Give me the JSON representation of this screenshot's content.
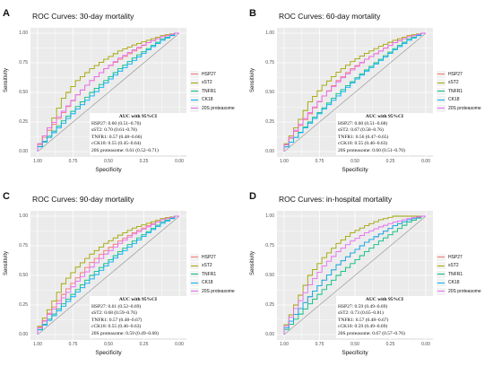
{
  "panels": [
    {
      "letter": "A",
      "title": "ROC Curves: 30-day mortality",
      "auc_header": "AUC with 95%CI",
      "auc_lines": [
        "HSP27: 0.60 (0.51–0.70)",
        "sST2: 0.70 (0.61–0.78)",
        "TNFR1: 0.57 (0.48–0.66)",
        "cCK18: 0.55 (0.45–0.64)",
        "20S proteasome: 0.61 (0.52–0.71)"
      ]
    },
    {
      "letter": "B",
      "title": "ROC Curves: 60-day mortality",
      "auc_header": "AUC with 95%CI",
      "auc_lines": [
        "HSP27: 0.60 (0.51–0.68)",
        "sST2: 0.67 (0.58–0.76)",
        "TNFR1: 0.56 (0.47–0.65)",
        "cCK18: 0.55 (0.46–0.63)",
        "20S proteasome: 0.60 (0.51–0.70)"
      ]
    },
    {
      "letter": "C",
      "title": "ROC Curves: 90-day mortality",
      "auc_header": "AUC with 95%CI",
      "auc_lines": [
        "HSP27: 0.61 (0.52–0.69)",
        "sST2: 0.68 (0.59–0.76)",
        "TNFR1: 0.57 (0.48–0.67)",
        "cCK18: 0.55 (0.46–0.63)",
        "20S proteasome: 0.59 (0.49–0.68)"
      ]
    },
    {
      "letter": "D",
      "title": "ROC Curves: in-hospital mortality",
      "auc_header": "AUC with 95%CI",
      "auc_lines": [
        "HSP27: 0.59 (0.49–0.69)",
        "sST2: 0.73 (0.65–0.81)",
        "TNFR1: 0.57 (0.48–0.67)",
        "cCK18: 0.59 (0.49–0.69)",
        "20S proteasome: 0.67 (0.57–0.76)"
      ]
    }
  ],
  "axis": {
    "xlabel": "Specificity",
    "ylabel": "Sensitivity",
    "xticks": [
      "1.00",
      "0.75",
      "0.50",
      "0.25",
      "0.00"
    ],
    "yticks": [
      "0.00",
      "0.25",
      "0.50",
      "0.75",
      "1.00"
    ]
  },
  "legend": [
    "HSP27",
    "sST2",
    "TNFR1",
    "CK18",
    "20S proteasome"
  ],
  "colors": {
    "HSP27": "#f8766d",
    "sST2": "#a3a500",
    "TNFR1": "#00bf7d",
    "CK18": "#00b0f6",
    "20S proteasome": "#e76bf3",
    "panel_background": "#ebebeb",
    "grid": "#ffffff"
  },
  "chart_data": [
    {
      "type": "line",
      "title": "ROC Curves: 30-day mortality",
      "xlabel": "Specificity",
      "ylabel": "Sensitivity",
      "xlim": [
        1.0,
        0.0
      ],
      "ylim": [
        0.0,
        1.0
      ],
      "x_reversed": true,
      "grid": true,
      "legend_position": "right",
      "series": [
        {
          "name": "HSP27",
          "x": [
            1.0,
            0.9,
            0.8,
            0.7,
            0.6,
            0.5,
            0.4,
            0.3,
            0.2,
            0.1,
            0.0
          ],
          "y": [
            0.0,
            0.18,
            0.33,
            0.48,
            0.6,
            0.7,
            0.78,
            0.85,
            0.92,
            0.97,
            1.0
          ]
        },
        {
          "name": "sST2",
          "x": [
            1.0,
            0.9,
            0.8,
            0.7,
            0.6,
            0.5,
            0.4,
            0.3,
            0.2,
            0.1,
            0.0
          ],
          "y": [
            0.0,
            0.2,
            0.45,
            0.6,
            0.7,
            0.78,
            0.85,
            0.9,
            0.94,
            0.98,
            1.0
          ]
        },
        {
          "name": "TNFR1",
          "x": [
            1.0,
            0.9,
            0.8,
            0.7,
            0.6,
            0.5,
            0.4,
            0.3,
            0.2,
            0.1,
            0.0
          ],
          "y": [
            0.0,
            0.13,
            0.26,
            0.38,
            0.5,
            0.6,
            0.7,
            0.79,
            0.87,
            0.95,
            1.0
          ]
        },
        {
          "name": "CK18",
          "x": [
            1.0,
            0.9,
            0.8,
            0.7,
            0.6,
            0.5,
            0.4,
            0.3,
            0.2,
            0.1,
            0.0
          ],
          "y": [
            0.0,
            0.12,
            0.24,
            0.36,
            0.47,
            0.58,
            0.68,
            0.77,
            0.86,
            0.94,
            1.0
          ]
        },
        {
          "name": "20S proteasome",
          "x": [
            1.0,
            0.9,
            0.8,
            0.7,
            0.6,
            0.5,
            0.4,
            0.3,
            0.2,
            0.1,
            0.0
          ],
          "y": [
            0.0,
            0.2,
            0.34,
            0.48,
            0.6,
            0.7,
            0.79,
            0.86,
            0.92,
            0.97,
            1.0
          ]
        }
      ]
    },
    {
      "type": "line",
      "title": "ROC Curves: 60-day mortality",
      "xlabel": "Specificity",
      "ylabel": "Sensitivity",
      "xlim": [
        1.0,
        0.0
      ],
      "ylim": [
        0.0,
        1.0
      ],
      "x_reversed": true,
      "grid": true,
      "legend_position": "right",
      "series": [
        {
          "name": "HSP27",
          "x": [
            1.0,
            0.9,
            0.8,
            0.7,
            0.6,
            0.5,
            0.4,
            0.3,
            0.2,
            0.1,
            0.0
          ],
          "y": [
            0.0,
            0.17,
            0.32,
            0.47,
            0.6,
            0.7,
            0.78,
            0.85,
            0.92,
            0.97,
            1.0
          ]
        },
        {
          "name": "sST2",
          "x": [
            1.0,
            0.9,
            0.8,
            0.7,
            0.6,
            0.5,
            0.4,
            0.3,
            0.2,
            0.1,
            0.0
          ],
          "y": [
            0.0,
            0.2,
            0.42,
            0.56,
            0.67,
            0.76,
            0.83,
            0.89,
            0.94,
            0.98,
            1.0
          ]
        },
        {
          "name": "TNFR1",
          "x": [
            1.0,
            0.9,
            0.8,
            0.7,
            0.6,
            0.5,
            0.4,
            0.3,
            0.2,
            0.1,
            0.0
          ],
          "y": [
            0.0,
            0.12,
            0.25,
            0.37,
            0.49,
            0.59,
            0.69,
            0.78,
            0.87,
            0.95,
            1.0
          ]
        },
        {
          "name": "CK18",
          "x": [
            1.0,
            0.9,
            0.8,
            0.7,
            0.6,
            0.5,
            0.4,
            0.3,
            0.2,
            0.1,
            0.0
          ],
          "y": [
            0.0,
            0.12,
            0.24,
            0.36,
            0.47,
            0.58,
            0.68,
            0.77,
            0.86,
            0.94,
            1.0
          ]
        },
        {
          "name": "20S proteasome",
          "x": [
            1.0,
            0.9,
            0.8,
            0.7,
            0.6,
            0.5,
            0.4,
            0.3,
            0.2,
            0.1,
            0.0
          ],
          "y": [
            0.0,
            0.18,
            0.33,
            0.47,
            0.59,
            0.69,
            0.78,
            0.85,
            0.92,
            0.97,
            1.0
          ]
        }
      ]
    },
    {
      "type": "line",
      "title": "ROC Curves: 90-day mortality",
      "xlabel": "Specificity",
      "ylabel": "Sensitivity",
      "xlim": [
        1.0,
        0.0
      ],
      "ylim": [
        0.0,
        1.0
      ],
      "x_reversed": true,
      "grid": true,
      "legend_position": "right",
      "series": [
        {
          "name": "HSP27",
          "x": [
            1.0,
            0.9,
            0.8,
            0.7,
            0.6,
            0.5,
            0.4,
            0.3,
            0.2,
            0.1,
            0.0
          ],
          "y": [
            0.0,
            0.18,
            0.34,
            0.48,
            0.61,
            0.71,
            0.79,
            0.86,
            0.92,
            0.97,
            1.0
          ]
        },
        {
          "name": "sST2",
          "x": [
            1.0,
            0.9,
            0.8,
            0.7,
            0.6,
            0.5,
            0.4,
            0.3,
            0.2,
            0.1,
            0.0
          ],
          "y": [
            0.0,
            0.21,
            0.43,
            0.57,
            0.68,
            0.77,
            0.84,
            0.9,
            0.94,
            0.98,
            1.0
          ]
        },
        {
          "name": "TNFR1",
          "x": [
            1.0,
            0.9,
            0.8,
            0.7,
            0.6,
            0.5,
            0.4,
            0.3,
            0.2,
            0.1,
            0.0
          ],
          "y": [
            0.0,
            0.13,
            0.26,
            0.38,
            0.5,
            0.6,
            0.7,
            0.79,
            0.87,
            0.95,
            1.0
          ]
        },
        {
          "name": "CK18",
          "x": [
            1.0,
            0.9,
            0.8,
            0.7,
            0.6,
            0.5,
            0.4,
            0.3,
            0.2,
            0.1,
            0.0
          ],
          "y": [
            0.0,
            0.12,
            0.24,
            0.36,
            0.47,
            0.58,
            0.68,
            0.77,
            0.86,
            0.94,
            1.0
          ]
        },
        {
          "name": "20S proteasome",
          "x": [
            1.0,
            0.9,
            0.8,
            0.7,
            0.6,
            0.5,
            0.4,
            0.3,
            0.2,
            0.1,
            0.0
          ],
          "y": [
            0.0,
            0.17,
            0.31,
            0.45,
            0.57,
            0.68,
            0.77,
            0.85,
            0.91,
            0.97,
            1.0
          ]
        }
      ]
    },
    {
      "type": "line",
      "title": "ROC Curves: in-hospital mortality",
      "xlabel": "Specificity",
      "ylabel": "Sensitivity",
      "xlim": [
        1.0,
        0.0
      ],
      "ylim": [
        0.0,
        1.0
      ],
      "x_reversed": true,
      "grid": true,
      "legend_position": "right",
      "series": [
        {
          "name": "HSP27",
          "x": [
            1.0,
            0.9,
            0.8,
            0.7,
            0.6,
            0.5,
            0.4,
            0.3,
            0.2,
            0.1,
            0.0
          ],
          "y": [
            0.0,
            0.17,
            0.32,
            0.46,
            0.59,
            0.69,
            0.78,
            0.85,
            0.92,
            0.97,
            1.0
          ]
        },
        {
          "name": "sST2",
          "x": [
            1.0,
            0.9,
            0.8,
            0.7,
            0.6,
            0.5,
            0.4,
            0.3,
            0.2,
            0.1,
            0.0
          ],
          "y": [
            0.0,
            0.25,
            0.5,
            0.65,
            0.77,
            0.86,
            0.92,
            0.97,
            1.0,
            1.0,
            1.0
          ]
        },
        {
          "name": "TNFR1",
          "x": [
            1.0,
            0.9,
            0.8,
            0.7,
            0.6,
            0.5,
            0.4,
            0.3,
            0.2,
            0.1,
            0.0
          ],
          "y": [
            0.0,
            0.13,
            0.26,
            0.38,
            0.5,
            0.6,
            0.7,
            0.79,
            0.87,
            0.95,
            1.0
          ]
        },
        {
          "name": "CK18",
          "x": [
            1.0,
            0.9,
            0.8,
            0.7,
            0.6,
            0.5,
            0.4,
            0.3,
            0.2,
            0.1,
            0.0
          ],
          "y": [
            0.0,
            0.17,
            0.32,
            0.46,
            0.59,
            0.69,
            0.78,
            0.85,
            0.92,
            0.97,
            1.0
          ]
        },
        {
          "name": "20S proteasome",
          "x": [
            1.0,
            0.9,
            0.8,
            0.7,
            0.6,
            0.5,
            0.4,
            0.3,
            0.2,
            0.1,
            0.0
          ],
          "y": [
            0.0,
            0.22,
            0.42,
            0.58,
            0.7,
            0.79,
            0.86,
            0.91,
            0.95,
            0.98,
            1.0
          ]
        }
      ]
    }
  ]
}
